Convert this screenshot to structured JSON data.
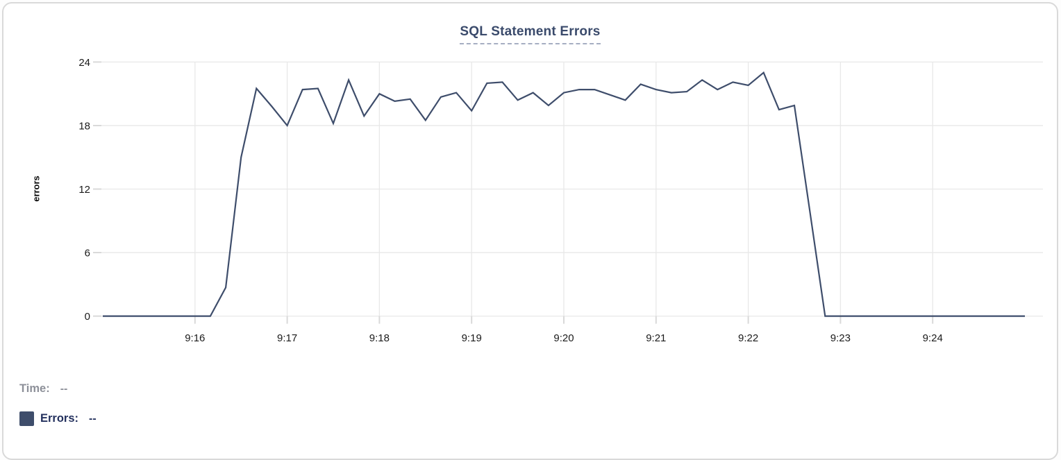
{
  "card": {
    "title": "SQL Statement Errors"
  },
  "chart_data": {
    "type": "line",
    "title": "SQL Statement Errors",
    "xlabel": "",
    "ylabel": "errors",
    "ylim": [
      0,
      24
    ],
    "y_ticks": [
      0,
      6,
      12,
      18,
      24
    ],
    "x_ticks": [
      "9:16",
      "9:17",
      "9:18",
      "9:19",
      "9:20",
      "9:21",
      "9:22",
      "9:23",
      "9:24"
    ],
    "x_range": [
      "9:15:00",
      "9:25:00"
    ],
    "grid": true,
    "legend_position": "bottom-left",
    "series": [
      {
        "name": "Errors",
        "color": "#3e4d6b",
        "times": [
          "9:15:00",
          "9:15:10",
          "9:15:20",
          "9:15:30",
          "9:15:40",
          "9:15:50",
          "9:16:00",
          "9:16:10",
          "9:16:20",
          "9:16:30",
          "9:16:40",
          "9:16:50",
          "9:17:00",
          "9:17:10",
          "9:17:20",
          "9:17:30",
          "9:17:40",
          "9:17:50",
          "9:18:00",
          "9:18:10",
          "9:18:20",
          "9:18:30",
          "9:18:40",
          "9:18:50",
          "9:19:00",
          "9:19:10",
          "9:19:20",
          "9:19:30",
          "9:19:40",
          "9:19:50",
          "9:20:00",
          "9:20:10",
          "9:20:20",
          "9:20:30",
          "9:20:40",
          "9:20:50",
          "9:21:00",
          "9:21:10",
          "9:21:20",
          "9:21:30",
          "9:21:40",
          "9:21:50",
          "9:22:00",
          "9:22:10",
          "9:22:20",
          "9:22:30",
          "9:22:40",
          "9:22:50",
          "9:23:00",
          "9:23:10",
          "9:23:20",
          "9:23:30",
          "9:23:40",
          "9:23:50",
          "9:24:00",
          "9:24:10",
          "9:24:20",
          "9:24:30",
          "9:24:40",
          "9:24:50",
          "9:25:00"
        ],
        "values": [
          0,
          0,
          0,
          0,
          0,
          0,
          0,
          0,
          2.7,
          15,
          21.5,
          19.8,
          18,
          21.4,
          21.5,
          18.2,
          22.3,
          18.9,
          21,
          20.3,
          20.5,
          18.5,
          20.7,
          21.1,
          19.4,
          22,
          22.1,
          20.4,
          21.1,
          19.9,
          21.1,
          21.4,
          21.4,
          20.9,
          20.4,
          21.9,
          21.4,
          21.1,
          21.2,
          22.3,
          21.4,
          22.1,
          21.8,
          23,
          19.5,
          19.9,
          10,
          0,
          0,
          0,
          0,
          0,
          0,
          0,
          0,
          0,
          0,
          0,
          0,
          0,
          0
        ]
      }
    ]
  },
  "readout": {
    "time_label": "Time:",
    "time_value": "--",
    "errors_label": "Errors:",
    "errors_value": "--"
  },
  "colors": {
    "line": "#3e4d6b",
    "swatch": "#3e4d6b",
    "title": "#3a4a6b",
    "title_underline": "#a6aec2",
    "grid": "#e8e8e8",
    "tick": "#d9d9d9",
    "axis_text": "#1a1a1a",
    "time_readout": "#8d9099",
    "errors_readout": "#24315e",
    "card_border": "#d9d9d9"
  }
}
